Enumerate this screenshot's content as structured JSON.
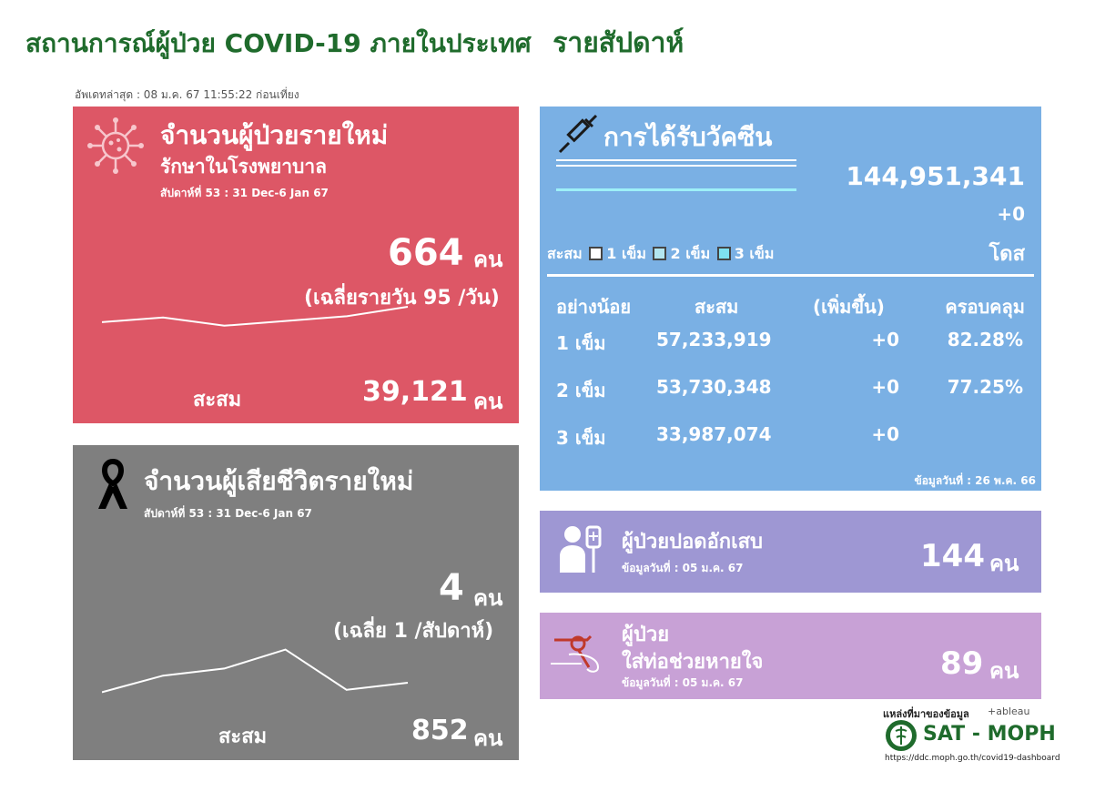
{
  "header": {
    "title": "สถานการณ์ผู้ป่วย COVID-19 ภายในประเทศ",
    "title_suffix": "รายสัปดาห์",
    "updated": "อัพเดทล่าสุด : 08 ม.ค. 67 11:55:22 ก่อนเที่ยง"
  },
  "new_cases": {
    "title": "จำนวนผู้ป่วยรายใหม่",
    "subtitle": "รักษาในโรงพยาบาล",
    "week": "สัปดาห์ที่ 53 : 31 Dec-6 Jan 67",
    "value": "664",
    "unit": "คน",
    "average": "(เฉลี่ยรายวัน 95 /วัน)",
    "cumulative_label": "สะสม",
    "cumulative_value": "39,121",
    "cumulative_unit": "คน",
    "trend": [
      0.35,
      0.55,
      0.2,
      0.4,
      0.6,
      1.0
    ]
  },
  "new_deaths": {
    "title": "จำนวนผู้เสียชีวิตรายใหม่",
    "week": "สัปดาห์ที่ 53 : 31 Dec-6 Jan 67",
    "value": "4",
    "unit": "คน",
    "average": "(เฉลี่ย 1 /สัปดาห์)",
    "cumulative_label": "สะสม",
    "cumulative_value": "852",
    "cumulative_unit": "คน",
    "trend": [
      0.05,
      0.4,
      0.55,
      0.95,
      0.1,
      0.25
    ]
  },
  "vaccine": {
    "title": "การได้รับวัคซีน",
    "total": "144,951,341",
    "change": "+0",
    "unit": "โดส",
    "legend_prefix": "สะสม",
    "legend": [
      "1 เข็ม",
      "2 เข็ม",
      "3 เข็ม"
    ],
    "columns": [
      "อย่างน้อย",
      "สะสม",
      "(เพิ่มขึ้น)",
      "ครอบคลุม"
    ],
    "rows": [
      {
        "dose": "1 เข็ม",
        "cumulative": "57,233,919",
        "change": "+0",
        "coverage": "82.28%"
      },
      {
        "dose": "2 เข็ม",
        "cumulative": "53,730,348",
        "change": "+0",
        "coverage": "77.25%"
      },
      {
        "dose": "3 เข็ม",
        "cumulative": "33,987,074",
        "change": "+0",
        "coverage": ""
      }
    ],
    "data_date": "ข้อมูลวันที่ : 26 พ.ค. 66",
    "colors": {
      "dose1": "#ffffff",
      "dose2": "#b3e6f0",
      "dose3": "#7ee0f0"
    }
  },
  "pneumonia": {
    "title": "ผู้ป่วยปอดอักเสบ",
    "data_date": "ข้อมูลวันที่ : 05 ม.ค. 67",
    "value": "144",
    "unit": "คน"
  },
  "ventilator": {
    "title_line1": "ผู้ป่วย",
    "title_line2": "ใส่ท่อช่วยหายใจ",
    "data_date": "ข้อมูลวันที่ : 05 ม.ค. 67",
    "value": "89",
    "unit": "คน"
  },
  "footer": {
    "source_label": "แหล่งที่มาของข้อมูล",
    "tableau": "+ableau",
    "org": "SAT - MOPH",
    "url": "https://ddc.moph.go.th/covid19-dashboard"
  },
  "colors": {
    "title_green": "#1f6b2c",
    "new_cases_bg": "#dd5766",
    "deaths_bg": "#7f7f7f",
    "vaccine_bg": "#7ab0e4",
    "pneumonia_bg": "#9e97d3",
    "ventilator_bg": "#c8a1d6"
  },
  "icons": [
    "virus-icon",
    "ribbon-icon",
    "syringe-icon",
    "patient-icon",
    "intubation-icon",
    "moph-logo"
  ]
}
